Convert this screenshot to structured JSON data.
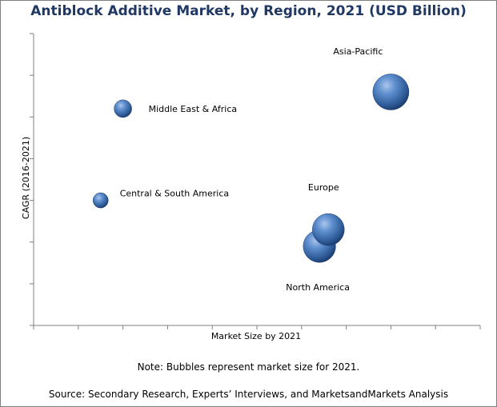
{
  "chart_data": {
    "type": "scatter",
    "title": "Antiblock Additive Market, by Region, 2021 (USD Billion)",
    "xlabel": "Market Size by 2021",
    "ylabel": "CAGR (2016-2021)",
    "grid": false,
    "show_tick_labels": false,
    "xlim": [
      0,
      10
    ],
    "ylim": [
      0,
      7
    ],
    "xticks": [
      0,
      1,
      2,
      3,
      4,
      5,
      6,
      7,
      8,
      9,
      10
    ],
    "yticks": [
      0,
      1,
      2,
      3,
      4,
      5,
      6,
      7
    ],
    "series": [
      {
        "name": "Asia-Pacific",
        "x": 8.0,
        "y": 5.6,
        "size": 4.2
      },
      {
        "name": "Middle East & Africa",
        "x": 2.0,
        "y": 5.2,
        "size": 1.0
      },
      {
        "name": "Central & South America",
        "x": 1.5,
        "y": 3.0,
        "size": 0.75
      },
      {
        "name": "Europe",
        "x": 6.6,
        "y": 2.3,
        "size": 3.3
      },
      {
        "name": "North America",
        "x": 6.4,
        "y": 1.9,
        "size": 3.4
      }
    ]
  },
  "bubble_color": "#4a7ab8",
  "title_color": "#1f3864",
  "note": "Note: Bubbles represent market size for 2021.",
  "source": "Source: Secondary Research, Experts’ Interviews, and MarketsandMarkets Analysis"
}
